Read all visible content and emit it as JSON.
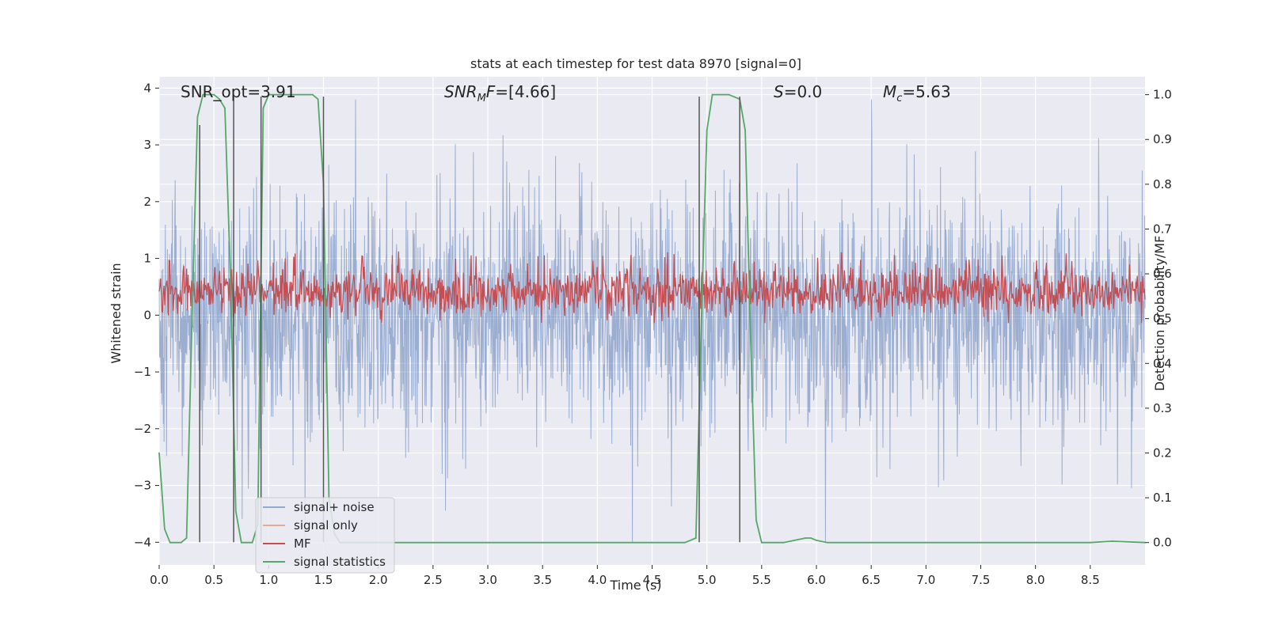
{
  "chart_data": {
    "type": "line",
    "title": "stats at each timestep for test data 8970 [signal=0]",
    "xlabel": "Time (s)",
    "ylabel": "Whitened strain",
    "ylabel_right": "Detection probability/MF",
    "xlim": [
      0,
      9.0
    ],
    "ylim": [
      -4.4,
      4.2
    ],
    "ylim_right": [
      -0.05,
      1.04
    ],
    "xticks": [
      0.0,
      0.5,
      1.0,
      1.5,
      2.0,
      2.5,
      3.0,
      3.5,
      4.0,
      4.5,
      5.0,
      5.5,
      6.0,
      6.5,
      7.0,
      7.5,
      8.0,
      8.5
    ],
    "xtick_labels": [
      "0.0",
      "0.5",
      "1.0",
      "1.5",
      "2.0",
      "2.5",
      "3.0",
      "3.5",
      "4.0",
      "4.5",
      "5.0",
      "5.5",
      "6.0",
      "6.5",
      "7.0",
      "7.5",
      "8.0",
      "8.5"
    ],
    "yticks": [
      -4,
      -3,
      -2,
      -1,
      0,
      1,
      2,
      3,
      4
    ],
    "ytick_labels": [
      "−4",
      "−3",
      "−2",
      "−1",
      "0",
      "1",
      "2",
      "3",
      "4"
    ],
    "yticks_right": [
      0.0,
      0.1,
      0.2,
      0.3,
      0.4,
      0.5,
      0.6,
      0.7,
      0.8,
      0.9,
      1.0
    ],
    "ytick_labels_right": [
      "0.0",
      "0.1",
      "0.2",
      "0.3",
      "0.4",
      "0.5",
      "0.6",
      "0.7",
      "0.8",
      "0.9",
      "1.0"
    ],
    "grid": true,
    "legend_position": "lower-left",
    "annotations": {
      "snr_opt": "SNR_opt=3.91",
      "snr_mf_name": "SNR",
      "snr_mf_sub": "M",
      "snr_mf_rest": "F",
      "snr_mf_value": "=[4.66]",
      "s_name": "S",
      "s_value": "=0.0",
      "mc_name": "M",
      "mc_sub": "c",
      "mc_value": "=5.63"
    },
    "series": [
      {
        "name": "signal+ noise",
        "color": "#4c72b0",
        "axis": "left",
        "kind": "noise",
        "amplitude_range": [
          -4.0,
          3.8
        ]
      },
      {
        "name": "signal only",
        "color": "#dd8452",
        "axis": "left",
        "kind": "flat",
        "values": []
      },
      {
        "name": "MF",
        "color": "#c44e52",
        "axis": "right",
        "kind": "noise_band",
        "range": [
          0.5,
          0.62
        ]
      },
      {
        "name": "signal statistics",
        "color": "#55a868",
        "axis": "right",
        "x": [
          0.0,
          0.05,
          0.1,
          0.15,
          0.2,
          0.25,
          0.3,
          0.35,
          0.4,
          0.45,
          0.5,
          0.55,
          0.6,
          0.65,
          0.7,
          0.75,
          0.8,
          0.85,
          0.9,
          0.95,
          1.0,
          1.05,
          1.1,
          1.2,
          1.3,
          1.4,
          1.45,
          1.5,
          1.55,
          1.6,
          1.65,
          1.7,
          1.8,
          2.0,
          3.0,
          4.0,
          4.5,
          4.8,
          4.9,
          4.95,
          5.0,
          5.05,
          5.1,
          5.2,
          5.3,
          5.35,
          5.4,
          5.45,
          5.5,
          5.6,
          5.7,
          5.8,
          5.9,
          5.95,
          6.0,
          6.1,
          6.5,
          7.0,
          7.5,
          8.0,
          8.5,
          8.7,
          9.0
        ],
        "values": [
          0.2,
          0.03,
          0.0,
          0.0,
          0.0,
          0.01,
          0.5,
          0.95,
          1.0,
          1.0,
          1.0,
          0.99,
          0.97,
          0.6,
          0.07,
          0.0,
          0.0,
          0.0,
          0.04,
          0.97,
          1.0,
          1.0,
          1.0,
          1.0,
          1.0,
          1.0,
          0.99,
          0.8,
          0.1,
          0.02,
          0.0,
          0.0,
          0.0,
          0.0,
          0.0,
          0.0,
          0.0,
          0.0,
          0.01,
          0.5,
          0.92,
          1.0,
          1.0,
          1.0,
          0.99,
          0.92,
          0.45,
          0.05,
          0.0,
          0.0,
          0.0,
          0.005,
          0.01,
          0.01,
          0.005,
          0.0,
          0.0,
          0.0,
          0.0,
          0.0,
          0.0,
          0.003,
          0.0
        ]
      }
    ],
    "vertical_markers": [
      {
        "x": 0.37,
        "y_range": [
          -4.0,
          3.35
        ]
      },
      {
        "x": 0.68,
        "y_range": [
          -4.0,
          3.85
        ]
      },
      {
        "x": 0.93,
        "y_range": [
          -4.0,
          3.85
        ]
      },
      {
        "x": 1.5,
        "y_range": [
          -4.0,
          3.85
        ]
      },
      {
        "x": 4.93,
        "y_range": [
          -4.0,
          3.85
        ]
      },
      {
        "x": 5.3,
        "y_range": [
          -4.0,
          3.85
        ]
      }
    ]
  }
}
